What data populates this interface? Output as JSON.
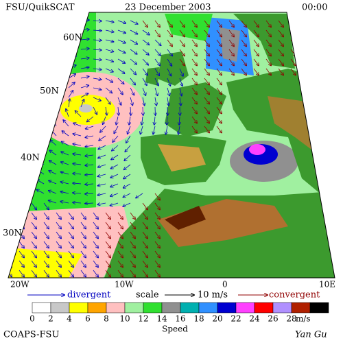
{
  "header": {
    "left": "FSU/QuikSCAT",
    "center": "23 December 2003",
    "right": "00:00"
  },
  "map": {
    "lat_labels": [
      "60N",
      "50N",
      "40N",
      "30N"
    ],
    "lon_labels": [
      "20W",
      "10W",
      "0",
      "10E"
    ]
  },
  "legend": {
    "divergent": "divergent",
    "scale": "scale",
    "scale_value": "10 m/s",
    "convergent": "convergent"
  },
  "colorbar": {
    "colors": [
      "#ffffff",
      "#c8c8c8",
      "#ffff00",
      "#ffa500",
      "#ffc0c0",
      "#a0f0a0",
      "#30e030",
      "#909090",
      "#00b0b0",
      "#3090ff",
      "#0000d0",
      "#ff40ff",
      "#ff0000",
      "#b090ff",
      "#b02000",
      "#000000"
    ],
    "ticks": [
      0,
      2,
      4,
      6,
      8,
      10,
      12,
      14,
      16,
      18,
      20,
      22,
      24,
      26,
      28
    ],
    "unit": "m/s",
    "label": "Speed"
  },
  "footer": {
    "left": "COAPS-FSU",
    "right": "Yan Gu"
  }
}
